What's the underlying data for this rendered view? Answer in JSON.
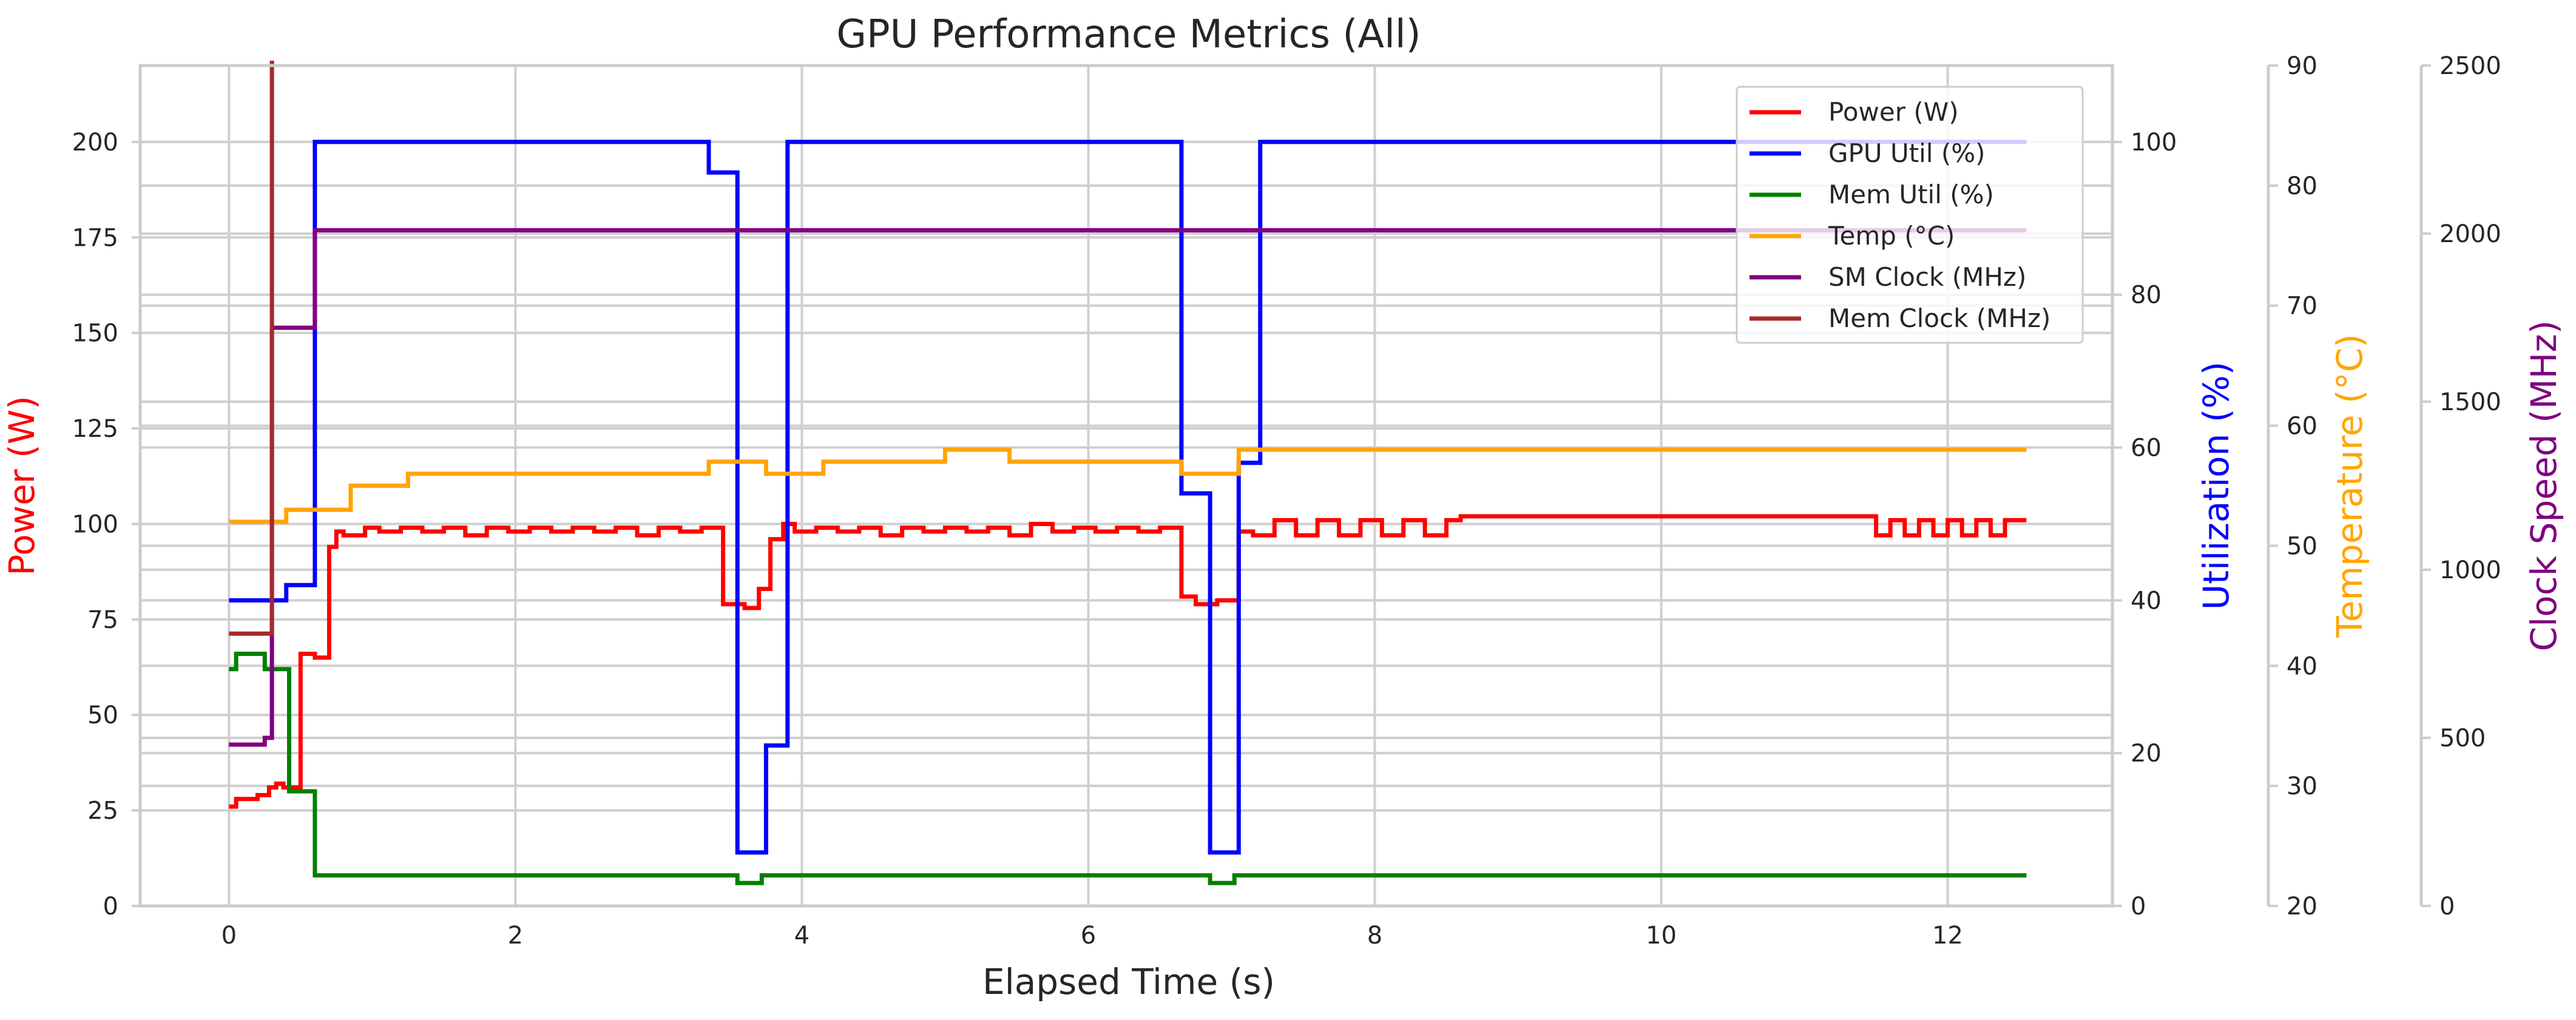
{
  "chart_data": {
    "type": "line",
    "title": "GPU Performance Metrics (All)",
    "xlabel": "Elapsed Time (s)",
    "xlim": [
      -0.62,
      13.15
    ],
    "xticks": [
      0,
      2,
      4,
      6,
      8,
      10,
      12
    ],
    "grid": true,
    "legend_position": "top-right",
    "axes": [
      {
        "id": "power",
        "label": "Power (W)",
        "color": "#ff0000",
        "side": "left",
        "ylim": [
          0,
          220
        ],
        "ticks": [
          0,
          25,
          50,
          75,
          100,
          125,
          150,
          175,
          200
        ]
      },
      {
        "id": "util",
        "label": "Utilization (%)",
        "color": "#0000ff",
        "side": "right",
        "ylim": [
          0,
          110
        ],
        "ticks": [
          0,
          20,
          40,
          60,
          80,
          100
        ]
      },
      {
        "id": "temp",
        "label": "Temperature (°C)",
        "color": "#ffa500",
        "side": "right",
        "ylim": [
          20,
          90
        ],
        "ticks": [
          20,
          30,
          40,
          50,
          60,
          70,
          80,
          90
        ]
      },
      {
        "id": "clock",
        "label": "Clock Speed (MHz)",
        "color": "#800080",
        "side": "right",
        "ylim": [
          0,
          2500
        ],
        "ticks": [
          0,
          500,
          1000,
          1500,
          2000,
          2500
        ]
      }
    ],
    "series": [
      {
        "name": "Power (W)",
        "axis": "power",
        "color": "#ff0000",
        "x": [
          0,
          0.05,
          0.2,
          0.28,
          0.33,
          0.38,
          0.5,
          0.6,
          0.7,
          0.75,
          0.8,
          0.95,
          1.05,
          1.2,
          1.35,
          1.5,
          1.65,
          1.8,
          1.95,
          2.1,
          2.25,
          2.4,
          2.55,
          2.7,
          2.85,
          3.0,
          3.15,
          3.3,
          3.45,
          3.6,
          3.7,
          3.78,
          3.87,
          3.95,
          4.1,
          4.25,
          4.4,
          4.55,
          4.7,
          4.85,
          5.0,
          5.15,
          5.3,
          5.45,
          5.6,
          5.75,
          5.9,
          6.05,
          6.2,
          6.35,
          6.5,
          6.65,
          6.75,
          6.9,
          7.05,
          7.15,
          7.3,
          7.45,
          7.6,
          7.75,
          7.9,
          8.05,
          8.2,
          8.35,
          8.5,
          8.6,
          9.0,
          10.0,
          11.0,
          11.5,
          11.6,
          11.7,
          11.8,
          11.9,
          12.0,
          12.1,
          12.2,
          12.3,
          12.4,
          12.55
        ],
        "y": [
          26,
          28,
          29,
          31,
          32,
          31,
          66,
          65,
          94,
          98,
          97,
          99,
          98,
          99,
          98,
          99,
          97,
          99,
          98,
          99,
          98,
          99,
          98,
          99,
          97,
          99,
          98,
          99,
          79,
          78,
          83,
          96,
          100,
          98,
          99,
          98,
          99,
          97,
          99,
          98,
          99,
          98,
          99,
          97,
          100,
          98,
          99,
          98,
          99,
          98,
          99,
          81,
          79,
          80,
          98,
          97,
          101,
          97,
          101,
          97,
          101,
          97,
          101,
          97,
          101,
          102,
          102,
          102,
          102,
          97,
          101,
          97,
          101,
          97,
          101,
          97,
          101,
          97,
          101,
          101
        ]
      },
      {
        "name": "GPU Util (%)",
        "axis": "util",
        "color": "#0000ff",
        "x": [
          0,
          0.4,
          0.6,
          3.35,
          3.55,
          3.75,
          3.9,
          6.65,
          6.85,
          7.05,
          7.2,
          12.55
        ],
        "y": [
          40,
          42,
          100,
          96,
          7,
          21,
          100,
          54,
          7,
          58,
          100,
          100
        ]
      },
      {
        "name": "Mem Util (%)",
        "axis": "util",
        "color": "#008000",
        "x": [
          0,
          0.05,
          0.25,
          0.42,
          0.6,
          3.55,
          3.72,
          6.85,
          7.02,
          12.55
        ],
        "y": [
          31,
          33,
          31,
          15,
          4,
          3,
          4,
          3,
          4,
          4
        ]
      },
      {
        "name": "Temp (°C)",
        "axis": "temp",
        "color": "#ffa500",
        "x": [
          0,
          0.4,
          0.85,
          1.25,
          3.35,
          3.75,
          4.15,
          5.0,
          5.45,
          6.65,
          7.05,
          12.55
        ],
        "y": [
          52,
          53,
          55,
          56,
          57,
          56,
          57,
          58,
          57,
          56,
          58,
          58
        ]
      },
      {
        "name": "SM Clock (MHz)",
        "axis": "clock",
        "color": "#800080",
        "x": [
          0,
          0.25,
          0.3,
          0.6,
          12.55
        ],
        "y": [
          480,
          500,
          1720,
          2010,
          2010
        ]
      },
      {
        "name": "Mem Clock (MHz)",
        "axis": "clock",
        "color": "#a52a2a",
        "x": [
          0,
          0.3,
          0.3
        ],
        "y": [
          810,
          810,
          2600
        ]
      }
    ]
  }
}
